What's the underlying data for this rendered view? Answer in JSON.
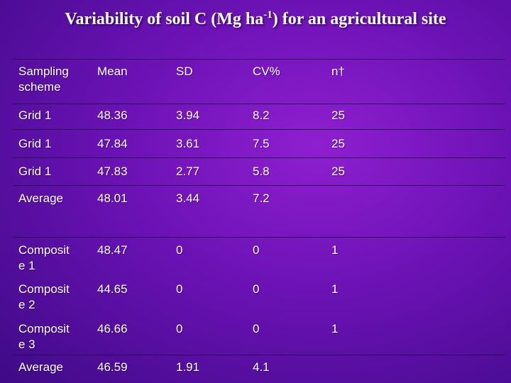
{
  "title": {
    "main": "Variability of soil C (Mg ha",
    "superscript": "-1",
    "rest": ") for an agricultural site"
  },
  "table": {
    "headers": {
      "sampling_line1": "Sampling",
      "sampling_line2": "scheme",
      "mean": "Mean",
      "sd": "SD",
      "cv": "CV%",
      "n": "n†"
    },
    "rows": [
      {
        "scheme": "Grid 1",
        "mean": "48.36",
        "sd": "3.94",
        "cv": "8.2",
        "n": "25"
      },
      {
        "scheme": "Grid 1",
        "mean": "47.84",
        "sd": "3.61",
        "cv": "7.5",
        "n": "25"
      },
      {
        "scheme": "Grid 1",
        "mean": "47.83",
        "sd": "2.77",
        "cv": "5.8",
        "n": "25"
      },
      {
        "scheme": "Average",
        "mean": "48.01",
        "sd": "3.44",
        "cv": "7.2",
        "n": ""
      },
      {
        "scheme_line1": "Composit",
        "scheme_line2": "e 1",
        "mean": "48.47",
        "sd": "0",
        "cv": "0",
        "n": "1"
      },
      {
        "scheme_line1": "Composit",
        "scheme_line2": "e 2",
        "mean": "44.65",
        "sd": "0",
        "cv": "0",
        "n": "1"
      },
      {
        "scheme_line1": "Composit",
        "scheme_line2": "e 3",
        "mean": "46.66",
        "sd": "0",
        "cv": "0",
        "n": "1"
      },
      {
        "scheme": "Average",
        "mean": "46.59",
        "sd": "1.91",
        "cv": "4.1",
        "n": ""
      }
    ]
  }
}
